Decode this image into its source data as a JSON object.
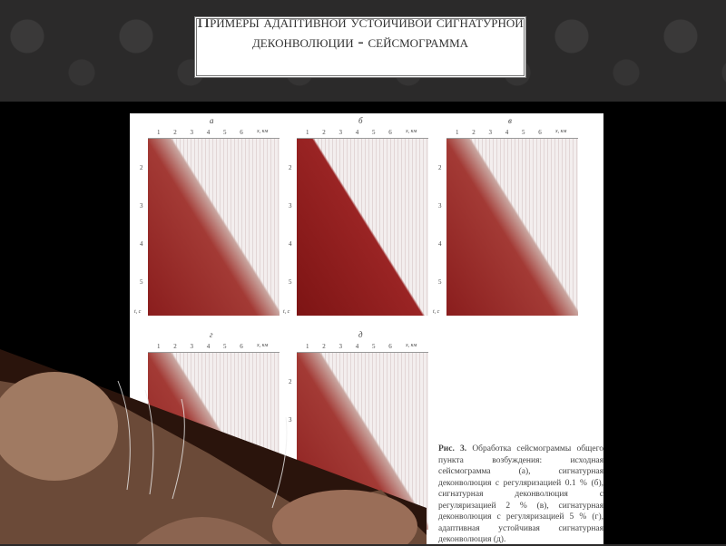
{
  "slide": {
    "title": "Примеры адаптивной устойчивой сигнатурной деконволюции - сейсмограмма"
  },
  "figure": {
    "panels": [
      {
        "label": "а",
        "x_axis": "x, км",
        "ticks": "1 2 3 4 5 6",
        "y_ticks": "2 3 4 5",
        "y_axis": "t, с"
      },
      {
        "label": "б",
        "x_axis": "x, км",
        "ticks": "1 2 3 4 5 6",
        "y_ticks": "2 3 4 5",
        "y_axis": "t, с"
      },
      {
        "label": "в",
        "x_axis": "x, км",
        "ticks": "1 2 3 4 5 6",
        "y_ticks": "2 3 4 5",
        "y_axis": "t, с"
      },
      {
        "label": "г",
        "x_axis": "x, км",
        "ticks": "1 2 3 4 5 6"
      },
      {
        "label": "д",
        "x_axis": "x, км",
        "ticks": "1 2 3 4 5 6",
        "y_ticks": "2 3"
      }
    ],
    "caption_bold": "Рис. 3.",
    "caption": "Обработка сейсмограммы общего пункта возбуждения: исходная сейсмограмма (а), сигнатурная деконволюция с регуляризацией 0.1 % (б), сигнатурная деконволюция с регуляризацией 2 % (в), сигнатурная деконволюция с регуляризацией 5 % (г), адаптивная устойчивая сигнатурная деконволюция (д)."
  },
  "colors": {
    "background": "#2b2a2a",
    "seismic": "#8a1d1d"
  }
}
